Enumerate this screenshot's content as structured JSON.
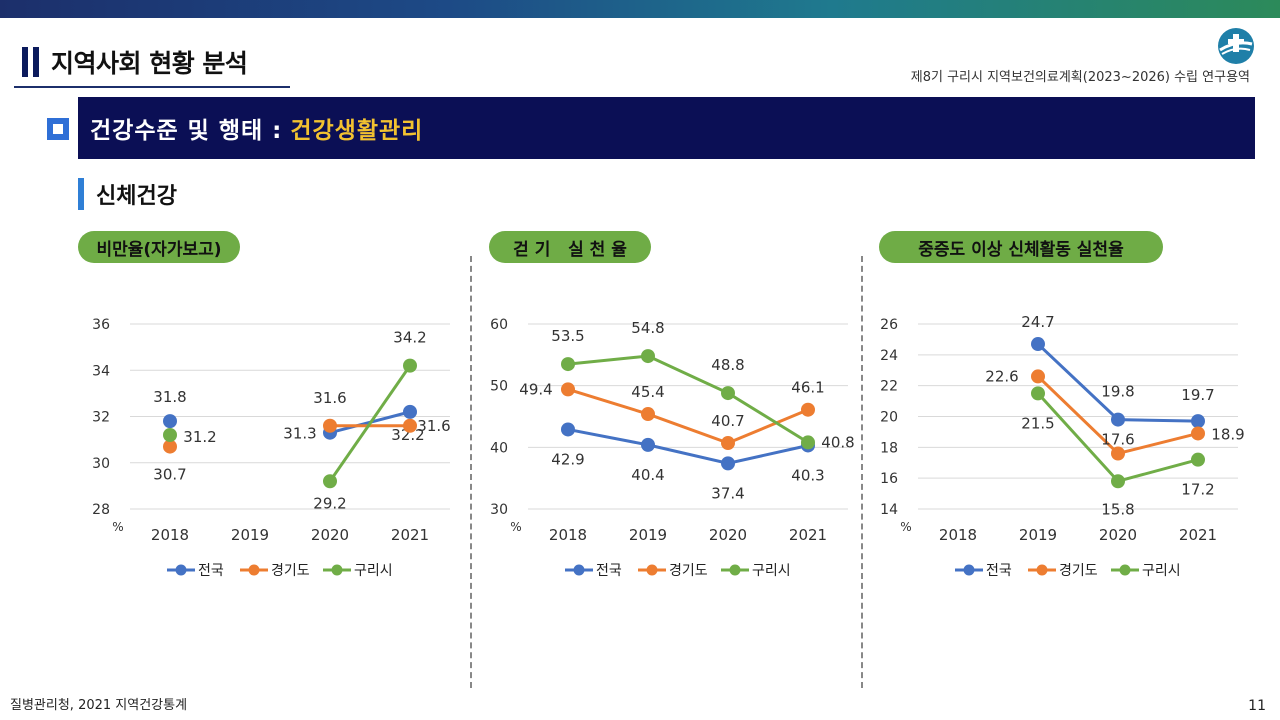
{
  "header": {
    "section_title": "지역사회 현황 분석",
    "project_title": "제8기 구리시 지역보건의료계획(2023~2026) 수립 연구용역",
    "banner_part1": "건강수준 및 행태 :",
    "banner_part2": "건강생활관리",
    "sub_title": "신체건강"
  },
  "colors": {
    "nation": "#4472c4",
    "gyeonggi": "#ed7d31",
    "guri": "#70ad47",
    "banner": "#0b0f55",
    "accent": "#f2c230"
  },
  "chart_data": [
    {
      "type": "line",
      "title": "비만율(자가보고)",
      "x": [
        "2018",
        "2019",
        "2020",
        "2021"
      ],
      "yunit": "%",
      "ylim": [
        28,
        36
      ],
      "yticks": [
        28,
        30,
        32,
        34,
        36
      ],
      "grid": true,
      "legend": "bottom",
      "series": [
        {
          "name": "전국",
          "values": [
            31.8,
            null,
            31.3,
            32.2
          ]
        },
        {
          "name": "경기도",
          "values": [
            30.7,
            null,
            31.6,
            31.6
          ]
        },
        {
          "name": "구리시",
          "values": [
            31.2,
            null,
            29.2,
            34.2
          ]
        }
      ]
    },
    {
      "type": "line",
      "title": "걷 기   실 천 율",
      "x": [
        "2018",
        "2019",
        "2020",
        "2021"
      ],
      "yunit": "%",
      "ylim": [
        30,
        60
      ],
      "yticks": [
        30,
        40,
        50,
        60
      ],
      "grid": true,
      "legend": "bottom",
      "series": [
        {
          "name": "전국",
          "values": [
            42.9,
            40.4,
            37.4,
            40.3
          ]
        },
        {
          "name": "경기도",
          "values": [
            49.4,
            45.4,
            40.7,
            46.1
          ]
        },
        {
          "name": "구리시",
          "values": [
            53.5,
            54.8,
            48.8,
            40.8
          ]
        }
      ]
    },
    {
      "type": "line",
      "title": "중증도 이상 신체활동 실천율",
      "x": [
        "2018",
        "2019",
        "2020",
        "2021"
      ],
      "yunit": "%",
      "ylim": [
        14,
        26
      ],
      "yticks": [
        14,
        16,
        18,
        20,
        22,
        24,
        26
      ],
      "grid": true,
      "legend": "bottom",
      "series": [
        {
          "name": "전국",
          "values": [
            null,
            24.7,
            19.8,
            19.7
          ]
        },
        {
          "name": "경기도",
          "values": [
            null,
            22.6,
            17.6,
            18.9
          ]
        },
        {
          "name": "구리시",
          "values": [
            null,
            21.5,
            15.8,
            17.2
          ]
        }
      ]
    }
  ],
  "footer": {
    "source": "질병관리청, 2021 지역건강통계",
    "page": "11"
  }
}
